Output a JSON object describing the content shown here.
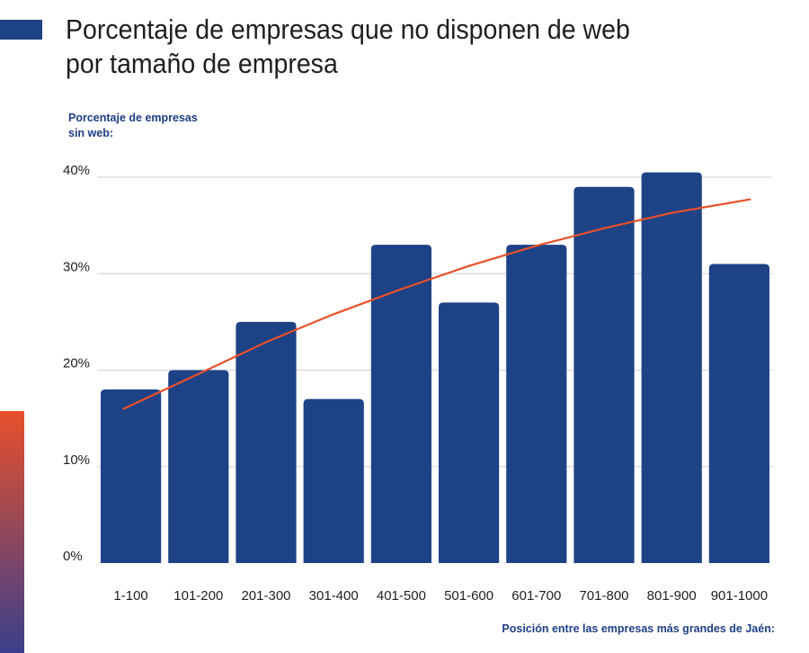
{
  "title": {
    "line1": "Porcentaje de empresas que no disponen de web",
    "line2": "por tamaño de empresa"
  },
  "chart_data": {
    "type": "bar",
    "title": "Porcentaje de empresas que no disponen de web por tamaño de empresa",
    "ylabel_line1": "Porcentaje de empresas",
    "ylabel_line2": "sin web:",
    "xlabel": "Posición entre las empresas más grandes de Jaén:",
    "categories": [
      "1-100",
      "101-200",
      "201-300",
      "301-400",
      "401-500",
      "501-600",
      "601-700",
      "701-800",
      "801-900",
      "901-1000"
    ],
    "values": [
      18,
      20,
      25,
      17,
      33,
      27,
      33,
      39,
      40.5,
      31
    ],
    "trendline": [
      16,
      19.6,
      22.9,
      25.8,
      28.4,
      30.8,
      32.9,
      34.7,
      36.3,
      37.7
    ],
    "yticks": [
      "0%",
      "10%",
      "20%",
      "30%",
      "40%"
    ],
    "ytick_values": [
      0,
      10,
      20,
      30,
      40
    ],
    "ylim": [
      0,
      40.5
    ],
    "grid": true,
    "colors": {
      "bar": "#1e4286",
      "trend": "#e8502a",
      "grid": "#d9d9d9",
      "accent_block": "#1e4286",
      "side_gradient_top": "#e8502a",
      "side_gradient_bottom": "#3b3f8c"
    }
  }
}
